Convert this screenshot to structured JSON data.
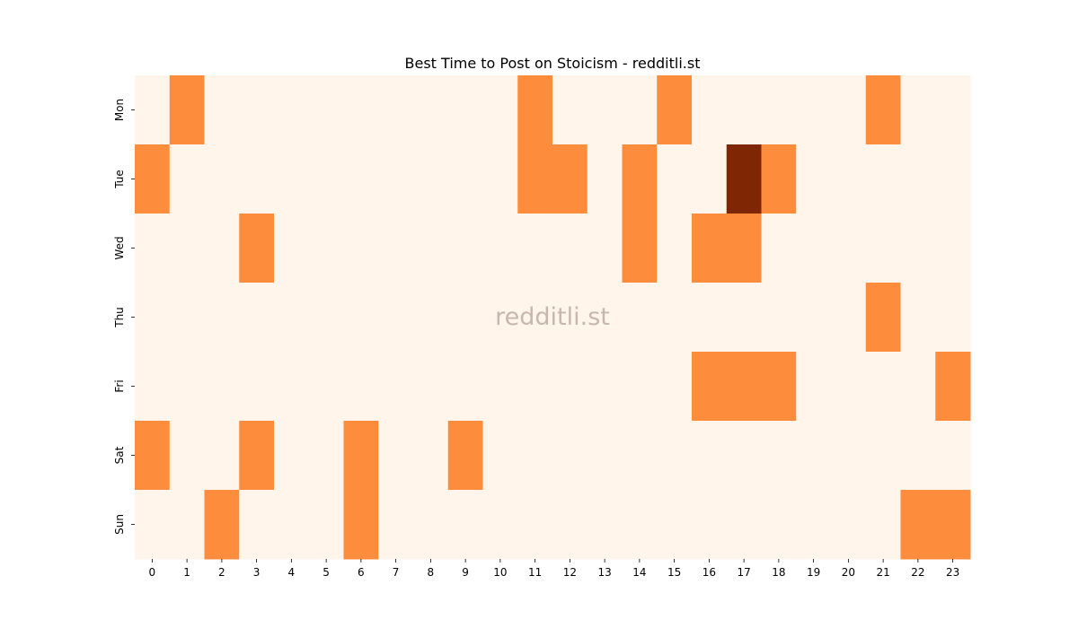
{
  "chart_data": {
    "type": "heatmap",
    "title": "Best Time to Post on Stoicism - redditli.st",
    "watermark": "redditli.st",
    "xlabel": "",
    "ylabel": "",
    "x_categories": [
      "0",
      "1",
      "2",
      "3",
      "4",
      "5",
      "6",
      "7",
      "8",
      "9",
      "10",
      "11",
      "12",
      "13",
      "14",
      "15",
      "16",
      "17",
      "18",
      "19",
      "20",
      "21",
      "22",
      "23"
    ],
    "y_categories": [
      "Mon",
      "Tue",
      "Wed",
      "Thu",
      "Fri",
      "Sat",
      "Sun"
    ],
    "values": [
      [
        0,
        1,
        0,
        0,
        0,
        0,
        0,
        0,
        0,
        0,
        0,
        1,
        0,
        0,
        0,
        1,
        0,
        0,
        0,
        0,
        0,
        1,
        0,
        0
      ],
      [
        1,
        0,
        0,
        0,
        0,
        0,
        0,
        0,
        0,
        0,
        0,
        1,
        1,
        0,
        1,
        0,
        0,
        3,
        1,
        0,
        0,
        0,
        0,
        0
      ],
      [
        0,
        0,
        0,
        1,
        0,
        0,
        0,
        0,
        0,
        0,
        0,
        0,
        0,
        0,
        1,
        0,
        1,
        1,
        0,
        0,
        0,
        0,
        0,
        0
      ],
      [
        0,
        0,
        0,
        0,
        0,
        0,
        0,
        0,
        0,
        0,
        0,
        0,
        0,
        0,
        0,
        0,
        0,
        0,
        0,
        0,
        0,
        1,
        0,
        0
      ],
      [
        0,
        0,
        0,
        0,
        0,
        0,
        0,
        0,
        0,
        0,
        0,
        0,
        0,
        0,
        0,
        0,
        1,
        1,
        1,
        0,
        0,
        0,
        0,
        1
      ],
      [
        1,
        0,
        0,
        1,
        0,
        0,
        1,
        0,
        0,
        1,
        0,
        0,
        0,
        0,
        0,
        0,
        0,
        0,
        0,
        0,
        0,
        0,
        0,
        0
      ],
      [
        0,
        0,
        1,
        0,
        0,
        0,
        1,
        0,
        0,
        0,
        0,
        0,
        0,
        0,
        0,
        0,
        0,
        0,
        0,
        0,
        0,
        0,
        1,
        1
      ]
    ],
    "colors": {
      "0": "#fff5eb",
      "1": "#fd8d3c",
      "3": "#7f2704"
    },
    "colormap": "Oranges",
    "grid": false,
    "legend": "none"
  }
}
